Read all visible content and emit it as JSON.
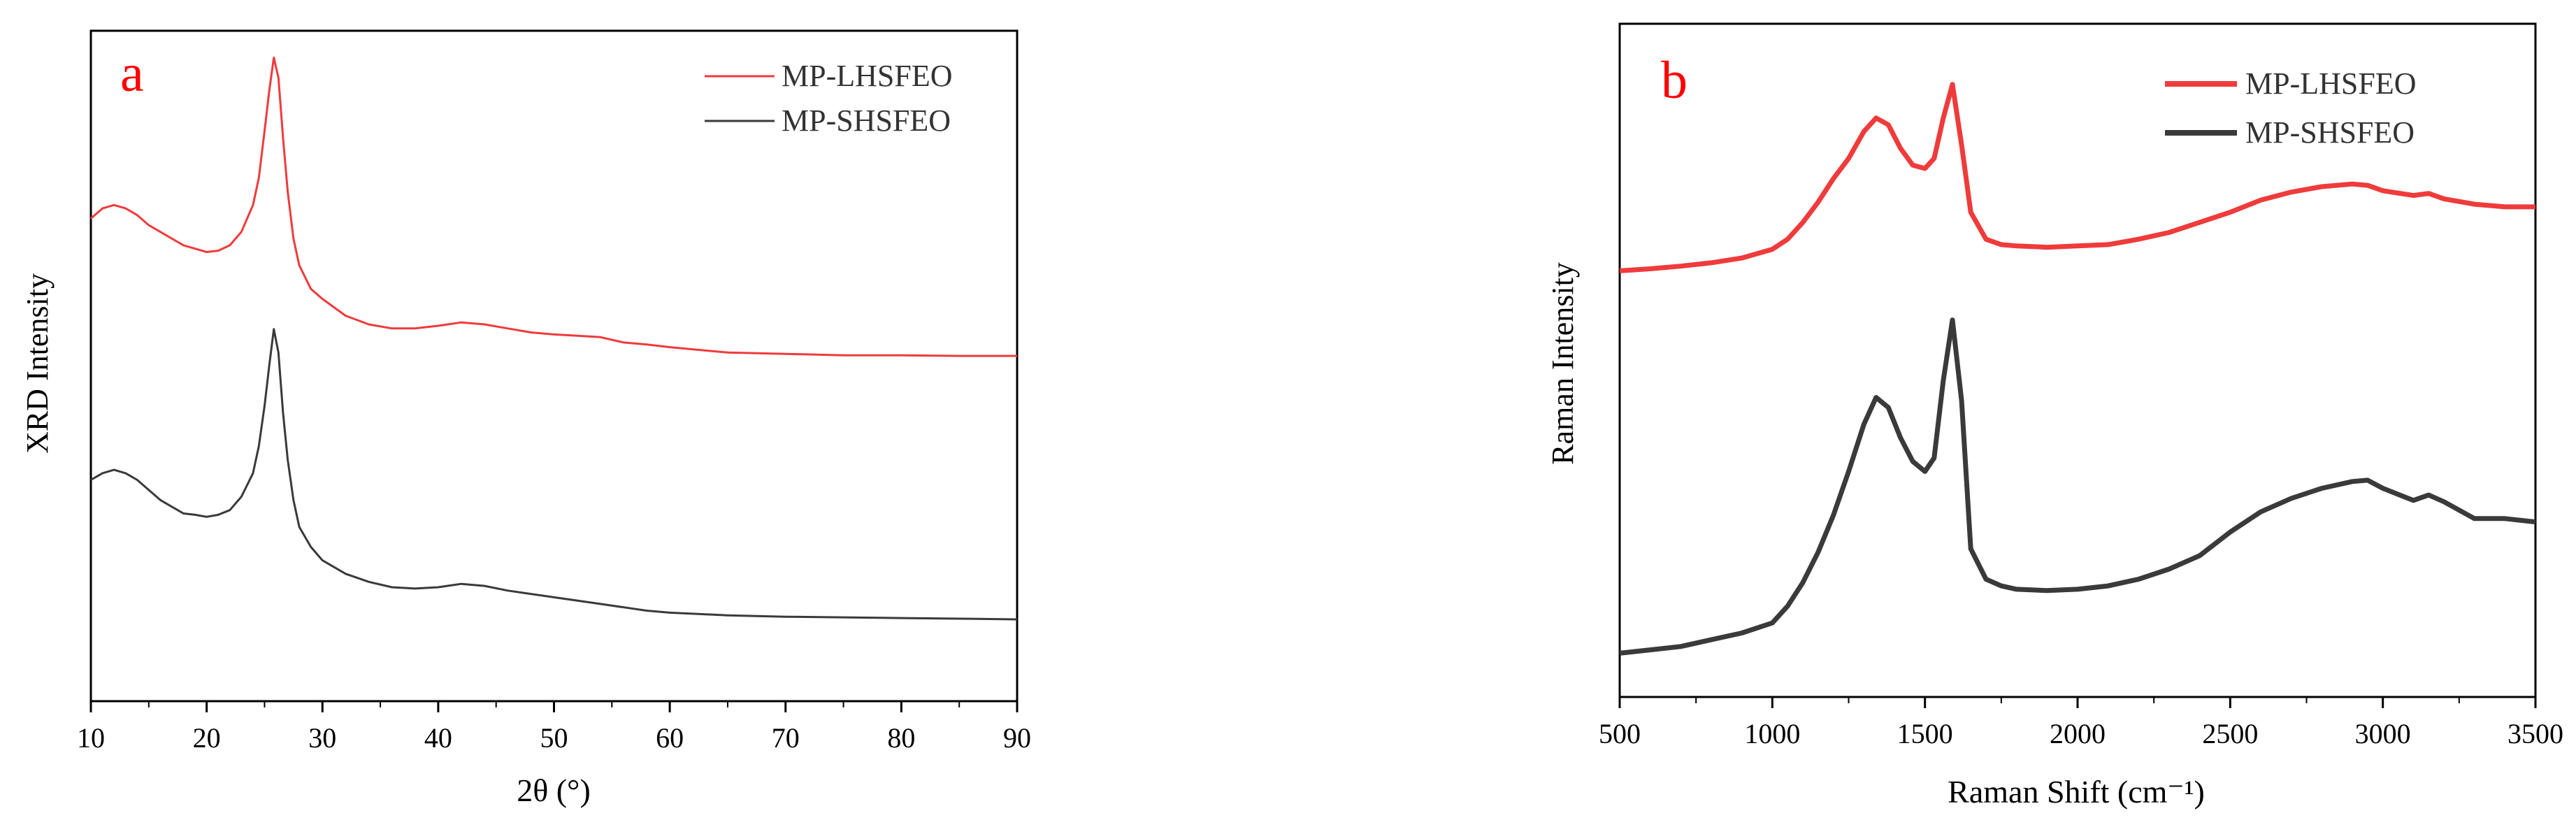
{
  "colors": {
    "red_series": "#ef3b3b",
    "dark_series": "#3a3a3a",
    "panel_letter": "#ff0000",
    "axis": "#000000"
  },
  "chart_data": [
    {
      "type": "line",
      "panel_label": "a",
      "xlabel": "2θ (°)",
      "ylabel": "XRD Intensity",
      "xlim": [
        10,
        90
      ],
      "ylim": [
        0,
        1
      ],
      "xticks": [
        "10",
        "20",
        "30",
        "40",
        "50",
        "60",
        "70",
        "80",
        "90"
      ],
      "show_y_ticks": false,
      "grid": false,
      "legend_position": "top-right",
      "series": [
        {
          "name": "MP-LHSFEO",
          "color": "#ef3b3b",
          "x": [
            10,
            11,
            12,
            13,
            14,
            15,
            16,
            17,
            18,
            19,
            20,
            21,
            22,
            23,
            24,
            24.5,
            25,
            25.4,
            25.8,
            26.2,
            26.6,
            27,
            27.5,
            28,
            29,
            30,
            32,
            34,
            36,
            38,
            40,
            42,
            44,
            46,
            48,
            50,
            52,
            54,
            56,
            58,
            60,
            65,
            70,
            75,
            80,
            85,
            90
          ],
          "y": [
            0.72,
            0.735,
            0.74,
            0.735,
            0.725,
            0.71,
            0.7,
            0.69,
            0.68,
            0.675,
            0.67,
            0.672,
            0.68,
            0.7,
            0.74,
            0.78,
            0.85,
            0.91,
            0.96,
            0.93,
            0.84,
            0.76,
            0.69,
            0.65,
            0.615,
            0.6,
            0.575,
            0.562,
            0.556,
            0.556,
            0.56,
            0.565,
            0.562,
            0.556,
            0.55,
            0.547,
            0.545,
            0.543,
            0.535,
            0.532,
            0.528,
            0.52,
            0.518,
            0.516,
            0.516,
            0.515,
            0.515
          ]
        },
        {
          "name": "MP-SHSFEO",
          "color": "#3a3a3a",
          "x": [
            10,
            11,
            12,
            13,
            14,
            15,
            16,
            17,
            18,
            19,
            20,
            21,
            22,
            23,
            24,
            24.5,
            25,
            25.4,
            25.8,
            26.2,
            26.6,
            27,
            27.5,
            28,
            29,
            30,
            32,
            34,
            36,
            38,
            40,
            42,
            44,
            46,
            48,
            50,
            52,
            54,
            56,
            58,
            60,
            65,
            70,
            75,
            80,
            85,
            90
          ],
          "y": [
            0.33,
            0.34,
            0.345,
            0.34,
            0.33,
            0.315,
            0.3,
            0.29,
            0.28,
            0.278,
            0.275,
            0.278,
            0.285,
            0.305,
            0.34,
            0.38,
            0.44,
            0.5,
            0.555,
            0.52,
            0.43,
            0.36,
            0.3,
            0.26,
            0.23,
            0.21,
            0.19,
            0.178,
            0.17,
            0.168,
            0.17,
            0.175,
            0.172,
            0.165,
            0.16,
            0.155,
            0.15,
            0.145,
            0.14,
            0.135,
            0.132,
            0.128,
            0.126,
            0.125,
            0.124,
            0.123,
            0.122
          ]
        }
      ]
    },
    {
      "type": "line",
      "panel_label": "b",
      "xlabel": "Raman Shift (cm⁻¹)",
      "ylabel": "Raman Intensity",
      "xlim": [
        500,
        3500
      ],
      "ylim": [
        0,
        1
      ],
      "xticks": [
        "500",
        "1000",
        "1500",
        "2000",
        "2500",
        "3000",
        "3500"
      ],
      "show_y_ticks": false,
      "grid": false,
      "legend_position": "top-right",
      "series": [
        {
          "name": "MP-LHSFEO",
          "color": "#ef3b3b",
          "x": [
            500,
            600,
            700,
            800,
            900,
            1000,
            1050,
            1100,
            1150,
            1200,
            1250,
            1300,
            1340,
            1380,
            1420,
            1460,
            1500,
            1530,
            1560,
            1590,
            1620,
            1650,
            1700,
            1750,
            1800,
            1900,
            2000,
            2100,
            2200,
            2300,
            2400,
            2500,
            2600,
            2700,
            2800,
            2900,
            2950,
            3000,
            3100,
            3150,
            3200,
            3300,
            3400,
            3500
          ],
          "y": [
            0.633,
            0.636,
            0.64,
            0.645,
            0.652,
            0.665,
            0.68,
            0.705,
            0.735,
            0.77,
            0.8,
            0.84,
            0.86,
            0.85,
            0.815,
            0.79,
            0.785,
            0.8,
            0.86,
            0.91,
            0.82,
            0.72,
            0.68,
            0.672,
            0.67,
            0.668,
            0.67,
            0.672,
            0.68,
            0.69,
            0.705,
            0.72,
            0.738,
            0.75,
            0.758,
            0.762,
            0.76,
            0.752,
            0.745,
            0.748,
            0.74,
            0.732,
            0.728,
            0.728
          ]
        },
        {
          "name": "MP-SHSFEO",
          "color": "#3a3a3a",
          "x": [
            500,
            600,
            700,
            800,
            900,
            1000,
            1050,
            1100,
            1150,
            1200,
            1250,
            1300,
            1340,
            1380,
            1420,
            1460,
            1500,
            1530,
            1560,
            1590,
            1620,
            1650,
            1700,
            1750,
            1800,
            1900,
            2000,
            2100,
            2200,
            2300,
            2400,
            2500,
            2600,
            2700,
            2800,
            2900,
            2950,
            3000,
            3100,
            3150,
            3200,
            3300,
            3400,
            3500
          ],
          "y": [
            0.065,
            0.07,
            0.075,
            0.085,
            0.095,
            0.11,
            0.135,
            0.17,
            0.215,
            0.27,
            0.335,
            0.405,
            0.445,
            0.43,
            0.385,
            0.35,
            0.335,
            0.355,
            0.47,
            0.56,
            0.44,
            0.22,
            0.175,
            0.165,
            0.16,
            0.158,
            0.16,
            0.165,
            0.175,
            0.19,
            0.21,
            0.245,
            0.275,
            0.295,
            0.31,
            0.32,
            0.322,
            0.31,
            0.292,
            0.3,
            0.29,
            0.265,
            0.265,
            0.26
          ]
        }
      ]
    }
  ]
}
